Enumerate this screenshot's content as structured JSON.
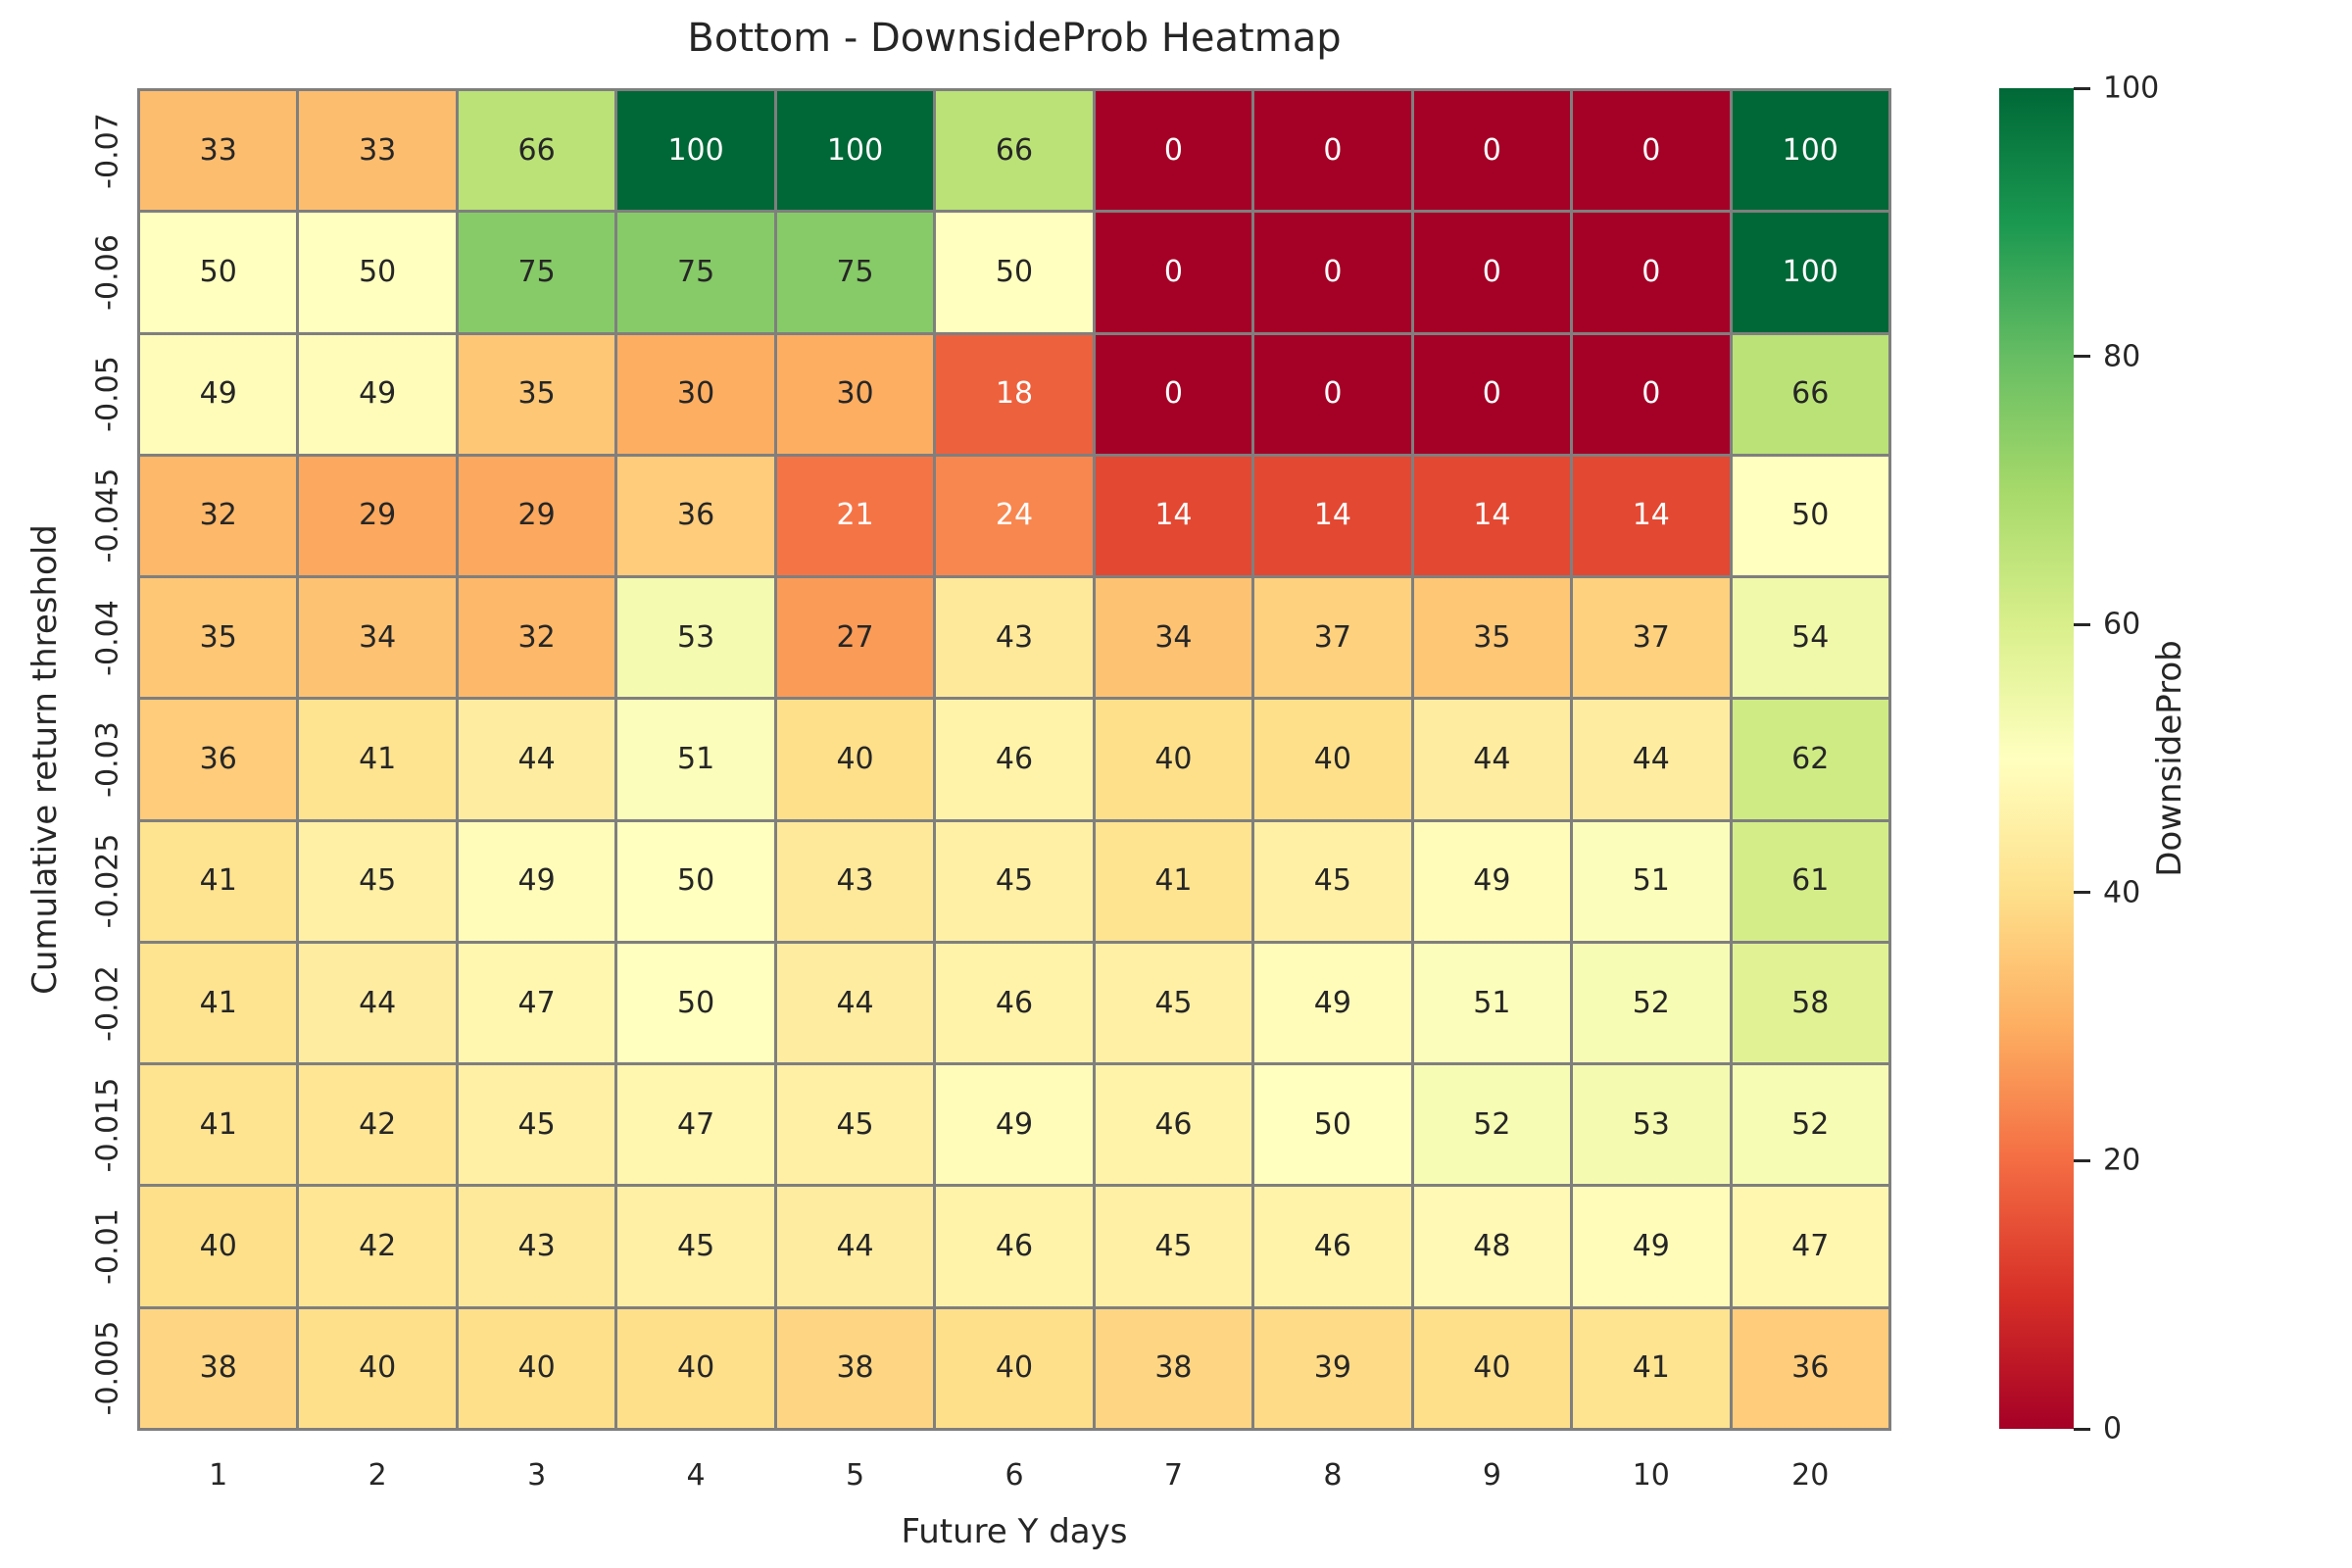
{
  "chart_data": {
    "type": "heatmap",
    "title": "Bottom - DownsideProb Heatmap",
    "xlabel": "Future Y days",
    "ylabel": "Cumulative return threshold",
    "colorbar_label": "DownsideProb",
    "x_categories": [
      "1",
      "2",
      "3",
      "4",
      "5",
      "6",
      "7",
      "8",
      "9",
      "10",
      "20"
    ],
    "y_categories": [
      "-0.07",
      "-0.06",
      "-0.05",
      "-0.045",
      "-0.04",
      "-0.03",
      "-0.025",
      "-0.02",
      "-0.015",
      "-0.01",
      "-0.005"
    ],
    "values": [
      [
        33,
        33,
        66,
        100,
        100,
        66,
        0,
        0,
        0,
        0,
        100
      ],
      [
        50,
        50,
        75,
        75,
        75,
        50,
        0,
        0,
        0,
        0,
        100
      ],
      [
        49,
        49,
        35,
        30,
        30,
        18,
        0,
        0,
        0,
        0,
        66
      ],
      [
        32,
        29,
        29,
        36,
        21,
        24,
        14,
        14,
        14,
        14,
        50
      ],
      [
        35,
        34,
        32,
        53,
        27,
        43,
        34,
        37,
        35,
        37,
        54
      ],
      [
        36,
        41,
        44,
        51,
        40,
        46,
        40,
        40,
        44,
        44,
        62
      ],
      [
        41,
        45,
        49,
        50,
        43,
        45,
        41,
        45,
        49,
        51,
        61
      ],
      [
        41,
        44,
        47,
        50,
        44,
        46,
        45,
        49,
        51,
        52,
        58
      ],
      [
        41,
        42,
        45,
        47,
        45,
        49,
        46,
        50,
        52,
        53,
        52
      ],
      [
        40,
        42,
        43,
        45,
        44,
        46,
        45,
        46,
        48,
        49,
        47
      ],
      [
        38,
        40,
        40,
        40,
        38,
        40,
        38,
        39,
        40,
        41,
        36
      ]
    ],
    "vmin": 0,
    "vmax": 100,
    "colorbar_ticks": [
      0,
      20,
      40,
      60,
      80,
      100
    ],
    "colormap": "RdYlGn",
    "colormap_stops": [
      "#a50026",
      "#d73027",
      "#f46d43",
      "#fdae61",
      "#fee08b",
      "#ffffbf",
      "#d9ef8b",
      "#a6d96a",
      "#66bd63",
      "#1a9850",
      "#006837"
    ],
    "gridline_color": "#7f7f7f",
    "annotation_dark_color": "#262626",
    "annotation_light_color": "#ffffff"
  }
}
